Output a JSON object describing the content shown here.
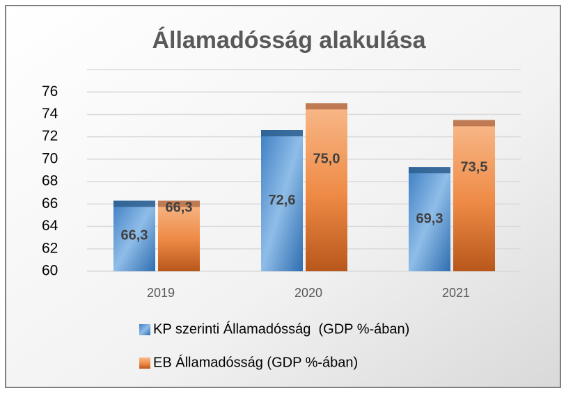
{
  "chart_data": {
    "type": "bar",
    "title": "Államadósság alakulása",
    "categories": [
      "2019",
      "2020",
      "2021"
    ],
    "series": [
      {
        "name": "KP szerinti Államadósság  (GDP %-ában)",
        "color": "#5b9bd5",
        "values": [
          66.3,
          72.6,
          69.3
        ],
        "value_labels": [
          "66,3",
          "72,6",
          "69,3"
        ]
      },
      {
        "name": "EB Államadósság (GDP %-ában)",
        "color": "#ed7d31",
        "values": [
          66.3,
          75.0,
          73.5
        ],
        "value_labels": [
          "66,3",
          "75,0",
          "73,5"
        ]
      }
    ],
    "ylim": [
      60,
      78
    ],
    "yticks": [
      60,
      62,
      64,
      66,
      68,
      70,
      72,
      74,
      76
    ],
    "grid": true
  }
}
